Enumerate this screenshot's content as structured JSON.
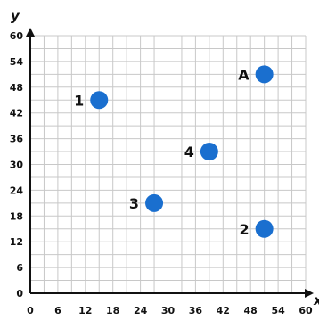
{
  "chart_data": {
    "type": "scatter",
    "xlabel": "x",
    "ylabel": "y",
    "xlim": [
      0,
      60
    ],
    "ylim": [
      0,
      60
    ],
    "x_ticks": [
      0,
      6,
      12,
      18,
      24,
      30,
      36,
      42,
      48,
      54,
      60
    ],
    "y_ticks": [
      0,
      6,
      12,
      18,
      24,
      30,
      36,
      42,
      48,
      54,
      60
    ],
    "grid": true,
    "point_color": "#1a6fcf",
    "points": [
      {
        "label": "A",
        "x": 51,
        "y": 51
      },
      {
        "label": "1",
        "x": 15,
        "y": 45
      },
      {
        "label": "4",
        "x": 39,
        "y": 33
      },
      {
        "label": "3",
        "x": 27,
        "y": 21
      },
      {
        "label": "2",
        "x": 51,
        "y": 15
      }
    ]
  }
}
